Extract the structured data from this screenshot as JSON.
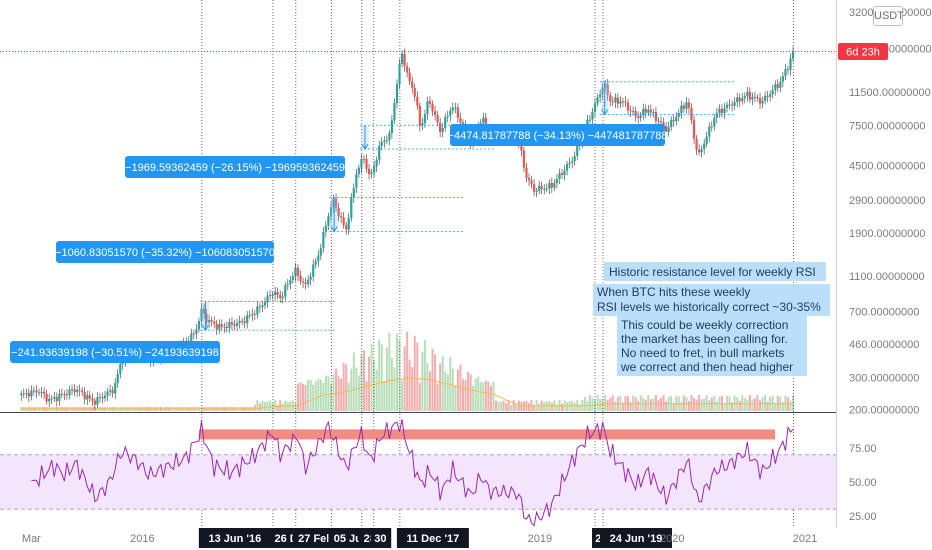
{
  "currency_label": "USDT",
  "countdown": "6d 23h",
  "colors": {
    "up": "#26a69a",
    "down": "#ef5350",
    "wick": "#333333",
    "rsi": "#9c27b0",
    "rsi_band_fill": "#f3e5fb",
    "note_bg": "#bbdefb",
    "measure_bg": "#2196f3",
    "resistance": "#f28b82",
    "price_line": "#f23645",
    "marker_bg": "#131722",
    "volume_ma": "#ffb74d"
  },
  "chart_data": [
    {
      "type": "candlestick",
      "scale": "log",
      "y_ticks": [
        32000,
        20000,
        11500,
        7500,
        4500,
        2900,
        1900,
        1100,
        700,
        460,
        300,
        200
      ],
      "y_tick_labels": [
        "32000.00000000",
        "20000.00000000",
        "11500.00000000",
        "7500.00000000",
        "4500.00000000",
        "2900.00000000",
        "1900.00000000",
        "1100.00000000",
        "700.00000000",
        "460.00000000",
        "300.00000000",
        "200.00000000"
      ],
      "ylim": [
        185,
        32500
      ],
      "x_labels": [
        "Mar",
        "2016",
        "2019",
        "2020",
        "2021"
      ],
      "current_price": 19300,
      "anchors": [
        [
          "2015-02-01",
          240
        ],
        [
          "2015-03-20",
          255
        ],
        [
          "2015-04-20",
          225
        ],
        [
          "2015-07-01",
          260
        ],
        [
          "2015-08-20",
          220
        ],
        [
          "2015-10-15",
          260
        ],
        [
          "2015-11-05",
          380
        ],
        [
          "2015-12-15",
          430
        ],
        [
          "2016-02-01",
          380
        ],
        [
          "2016-04-01",
          420
        ],
        [
          "2016-05-25",
          530
        ],
        [
          "2016-06-13",
          715
        ],
        [
          "2016-06-26",
          630
        ],
        [
          "2016-08-01",
          570
        ],
        [
          "2016-10-01",
          610
        ],
        [
          "2016-11-15",
          720
        ],
        [
          "2016-12-26",
          900
        ],
        [
          "2017-01-15",
          830
        ],
        [
          "2017-02-25",
          1180
        ],
        [
          "2017-03-25",
          960
        ],
        [
          "2017-05-01",
          1450
        ],
        [
          "2017-05-28",
          2400
        ],
        [
          "2017-06-10",
          2900
        ],
        [
          "2017-07-15",
          1950
        ],
        [
          "2017-08-15",
          4300
        ],
        [
          "2017-09-03",
          4950
        ],
        [
          "2017-09-20",
          3800
        ],
        [
          "2017-10-21",
          6100
        ],
        [
          "2017-11-12",
          6500
        ],
        [
          "2017-12-11",
          16500
        ],
        [
          "2017-12-17",
          19000
        ],
        [
          "2018-01-01",
          14000
        ],
        [
          "2018-01-20",
          11500
        ],
        [
          "2018-02-06",
          7200
        ],
        [
          "2018-03-01",
          10500
        ],
        [
          "2018-04-01",
          7000
        ],
        [
          "2018-05-05",
          9700
        ],
        [
          "2018-06-25",
          6100
        ],
        [
          "2018-07-25",
          8200
        ],
        [
          "2018-08-20",
          6400
        ],
        [
          "2018-11-01",
          6400
        ],
        [
          "2018-11-25",
          3900
        ],
        [
          "2018-12-15",
          3300
        ],
        [
          "2019-02-01",
          3450
        ],
        [
          "2019-04-02",
          4900
        ],
        [
          "2019-05-15",
          8000
        ],
        [
          "2019-06-26",
          12800
        ],
        [
          "2019-07-15",
          10200
        ],
        [
          "2019-08-15",
          10300
        ],
        [
          "2019-09-25",
          8300
        ],
        [
          "2019-10-26",
          9300
        ],
        [
          "2019-12-15",
          7100
        ],
        [
          "2020-02-12",
          10300
        ],
        [
          "2020-03-12",
          5000
        ],
        [
          "2020-04-30",
          8700
        ],
        [
          "2020-06-01",
          9600
        ],
        [
          "2020-07-25",
          11100
        ],
        [
          "2020-09-05",
          10200
        ],
        [
          "2020-10-25",
          13100
        ],
        [
          "2020-11-15",
          16000
        ],
        [
          "2020-11-30",
          19300
        ]
      ]
    },
    {
      "type": "line",
      "name": "RSI",
      "y_ticks": [
        75,
        50,
        25
      ],
      "y_tick_labels": [
        "75.00",
        "50.00",
        "25.00"
      ],
      "band": [
        70,
        30
      ],
      "resistance_level": 85,
      "anchors": [
        [
          "2015-03-01",
          48
        ],
        [
          "2015-05-01",
          62
        ],
        [
          "2015-06-01",
          55
        ],
        [
          "2015-07-01",
          64
        ],
        [
          "2015-08-25",
          38
        ],
        [
          "2015-10-01",
          49
        ],
        [
          "2015-11-05",
          73
        ],
        [
          "2015-12-15",
          66
        ],
        [
          "2016-01-20",
          55
        ],
        [
          "2016-03-01",
          60
        ],
        [
          "2016-05-01",
          68
        ],
        [
          "2016-06-13",
          88
        ],
        [
          "2016-07-15",
          62
        ],
        [
          "2016-09-01",
          57
        ],
        [
          "2016-11-01",
          68
        ],
        [
          "2016-12-26",
          87
        ],
        [
          "2017-01-15",
          70
        ],
        [
          "2017-03-05",
          84
        ],
        [
          "2017-03-25",
          60
        ],
        [
          "2017-05-28",
          91
        ],
        [
          "2017-07-15",
          60
        ],
        [
          "2017-08-25",
          86
        ],
        [
          "2017-09-20",
          65
        ],
        [
          "2017-10-21",
          84
        ],
        [
          "2017-12-11",
          94
        ],
        [
          "2018-02-06",
          48
        ],
        [
          "2018-03-05",
          58
        ],
        [
          "2018-04-05",
          42
        ],
        [
          "2018-05-05",
          59
        ],
        [
          "2018-06-25",
          40
        ],
        [
          "2018-07-25",
          55
        ],
        [
          "2018-08-15",
          43
        ],
        [
          "2018-11-01",
          42
        ],
        [
          "2018-11-25",
          23
        ],
        [
          "2018-12-15",
          20
        ],
        [
          "2019-02-01",
          32
        ],
        [
          "2019-04-05",
          68
        ],
        [
          "2019-05-15",
          85
        ],
        [
          "2019-06-24",
          90
        ],
        [
          "2019-07-15",
          72
        ],
        [
          "2019-09-25",
          47
        ],
        [
          "2019-10-26",
          58
        ],
        [
          "2019-12-15",
          38
        ],
        [
          "2020-02-12",
          66
        ],
        [
          "2020-03-12",
          35
        ],
        [
          "2020-05-01",
          59
        ],
        [
          "2020-06-01",
          62
        ],
        [
          "2020-07-25",
          73
        ],
        [
          "2020-09-05",
          57
        ],
        [
          "2020-10-25",
          74
        ],
        [
          "2020-11-30",
          91
        ]
      ]
    }
  ],
  "markers": [
    {
      "date": "2016-06-13",
      "label": "13 Jun '16"
    },
    {
      "date": "2016-12-26",
      "label": "26 D"
    },
    {
      "date": "2017-02-27",
      "label": "27 Feb"
    },
    {
      "date": "2017-06-05",
      "label": "05 Ju"
    },
    {
      "date": "2017-08-28",
      "label": "28 A"
    },
    {
      "date": "2017-09-30",
      "label": "30"
    },
    {
      "date": "2017-12-11",
      "label": "11 Dec '17"
    },
    {
      "date": "2019-06-02",
      "label": "2"
    },
    {
      "date": "2019-06-24",
      "label": "24 Jun '19"
    },
    {
      "date": "2020-11-30",
      "label": ""
    }
  ],
  "measures": [
    {
      "text": "−241.93639198 (−30.51%) −24193639198",
      "top": 793,
      "bottom": 551,
      "date": "2016-06-20"
    },
    {
      "text": "−1060.83051570 (−35.32%) −106083051570",
      "top": 3000,
      "bottom": 1940,
      "date": "2017-06-10"
    },
    {
      "text": "−1969.59362459 (−26.15%) −196959362459",
      "top": 7530,
      "bottom": 5560,
      "date": "2017-09-03"
    },
    {
      "text": "−4474.81787788 (−34.13%) −447481787788",
      "top": 13110,
      "bottom": 8640,
      "date": "2019-06-26"
    }
  ],
  "notes": {
    "title": "Historic resistance level for weekly RSI",
    "note1_lines": [
      "When BTC hits these weekly",
      "RSI levels we historically correct ~30-35%"
    ],
    "note2_lines": [
      "This could be weekly correction",
      "the market has been calling for.",
      "No need to fret, in bull markets",
      "we correct and then head higher"
    ]
  }
}
